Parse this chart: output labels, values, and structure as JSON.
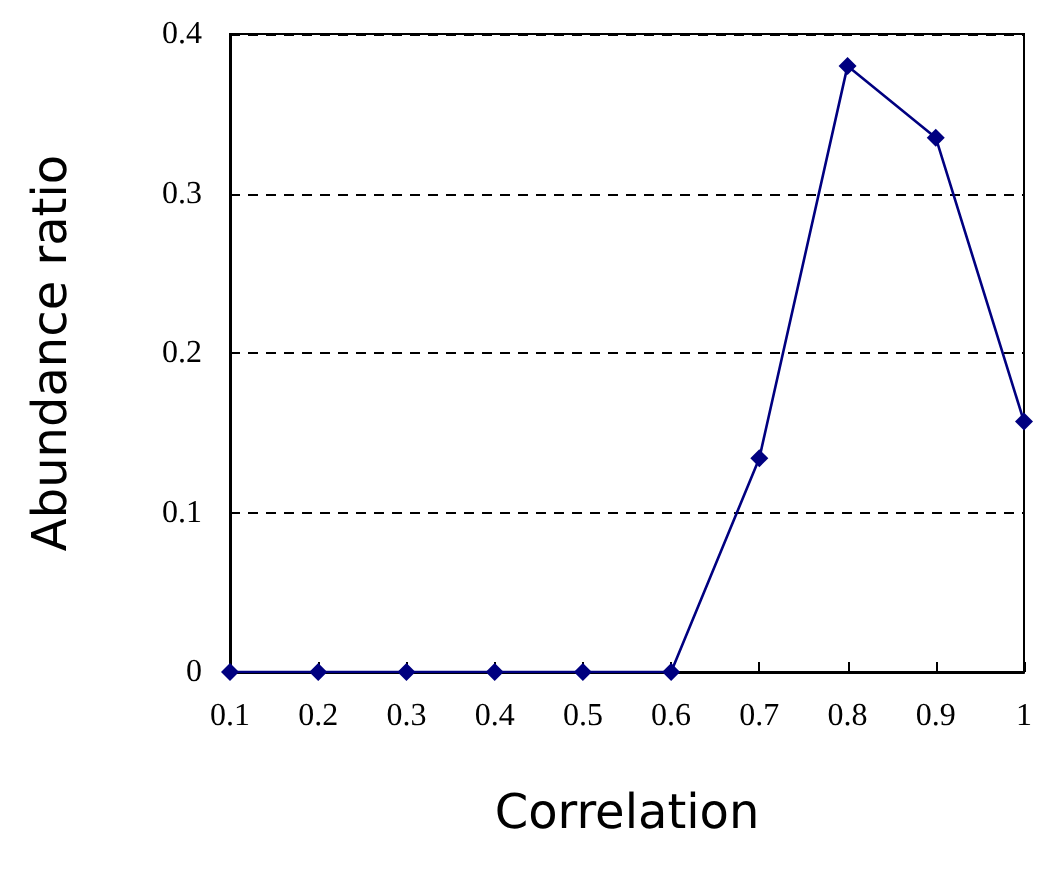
{
  "chart_data": {
    "type": "line",
    "xlabel": "Correlation",
    "ylabel": "Abundance ratio",
    "x": [
      0.1,
      0.2,
      0.3,
      0.4,
      0.5,
      0.6,
      0.7,
      0.8,
      0.9,
      1
    ],
    "series": [
      {
        "color": "#000080",
        "values": [
          0,
          0,
          0,
          0,
          0,
          0,
          0.134,
          0.38,
          0.335,
          0.157
        ]
      }
    ],
    "xlim": [
      0.1,
      1
    ],
    "xticks": [
      0.1,
      0.2,
      0.3,
      0.4,
      0.5,
      0.6,
      0.7,
      0.8,
      0.9,
      1
    ],
    "ylim": [
      0,
      0.4
    ],
    "yticks": [
      0,
      0.1,
      0.2,
      0.3,
      0.4
    ],
    "grid": "y",
    "marker": "diamond",
    "line_style": "solid"
  }
}
